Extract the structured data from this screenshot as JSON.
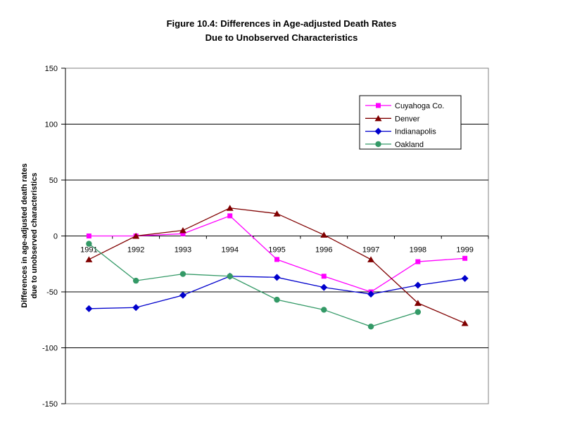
{
  "chart_data": {
    "type": "line",
    "title": "Figure 10.4: Differences in Age-adjusted Death Rates Due to Unobserved Characteristics",
    "title_lines": [
      "Figure 10.4: Differences in Age-adjusted Death Rates",
      "Due to Unobserved Characteristics"
    ],
    "ylabel": "Differences in age-adjusted death rates due to unobserved characteristics",
    "ylabel_lines": [
      "Differences in age-adjusted death rates",
      "due to unobserved characteristics"
    ],
    "xlabel": "",
    "categories": [
      "1991",
      "1992",
      "1993",
      "1994",
      "1995",
      "1996",
      "1997",
      "1998",
      "1999"
    ],
    "yticks": [
      150,
      100,
      50,
      0,
      -50,
      -100,
      -150
    ],
    "ylim": [
      -150,
      150
    ],
    "grid": "horizontal",
    "legend_position": "upper-right-inside",
    "series": [
      {
        "name": "Cuyahoga Co.",
        "color": "#FF00FF",
        "marker": "square",
        "values": [
          0,
          0,
          2,
          18,
          -21,
          -36,
          -50,
          -23,
          -20
        ]
      },
      {
        "name": "Denver",
        "color": "#800000",
        "marker": "triangle",
        "values": [
          -21,
          0,
          5,
          25,
          20,
          1,
          -21,
          -60,
          -78
        ]
      },
      {
        "name": "Indianapolis",
        "color": "#0000CC",
        "marker": "diamond",
        "values": [
          -65,
          -64,
          -53,
          -36,
          -37,
          -46,
          -52,
          -44,
          -38
        ]
      },
      {
        "name": "Oakland",
        "color": "#339966",
        "marker": "circle",
        "values": [
          -7,
          -40,
          -34,
          -36,
          -57,
          -66,
          -81,
          -68,
          null
        ]
      }
    ],
    "colors": {
      "axis": "#000000",
      "gridline": "#000000",
      "plot_border": "#808080",
      "legend_border": "#000000",
      "legend_fill": "#FFFFFF",
      "background": "#FFFFFF"
    }
  }
}
